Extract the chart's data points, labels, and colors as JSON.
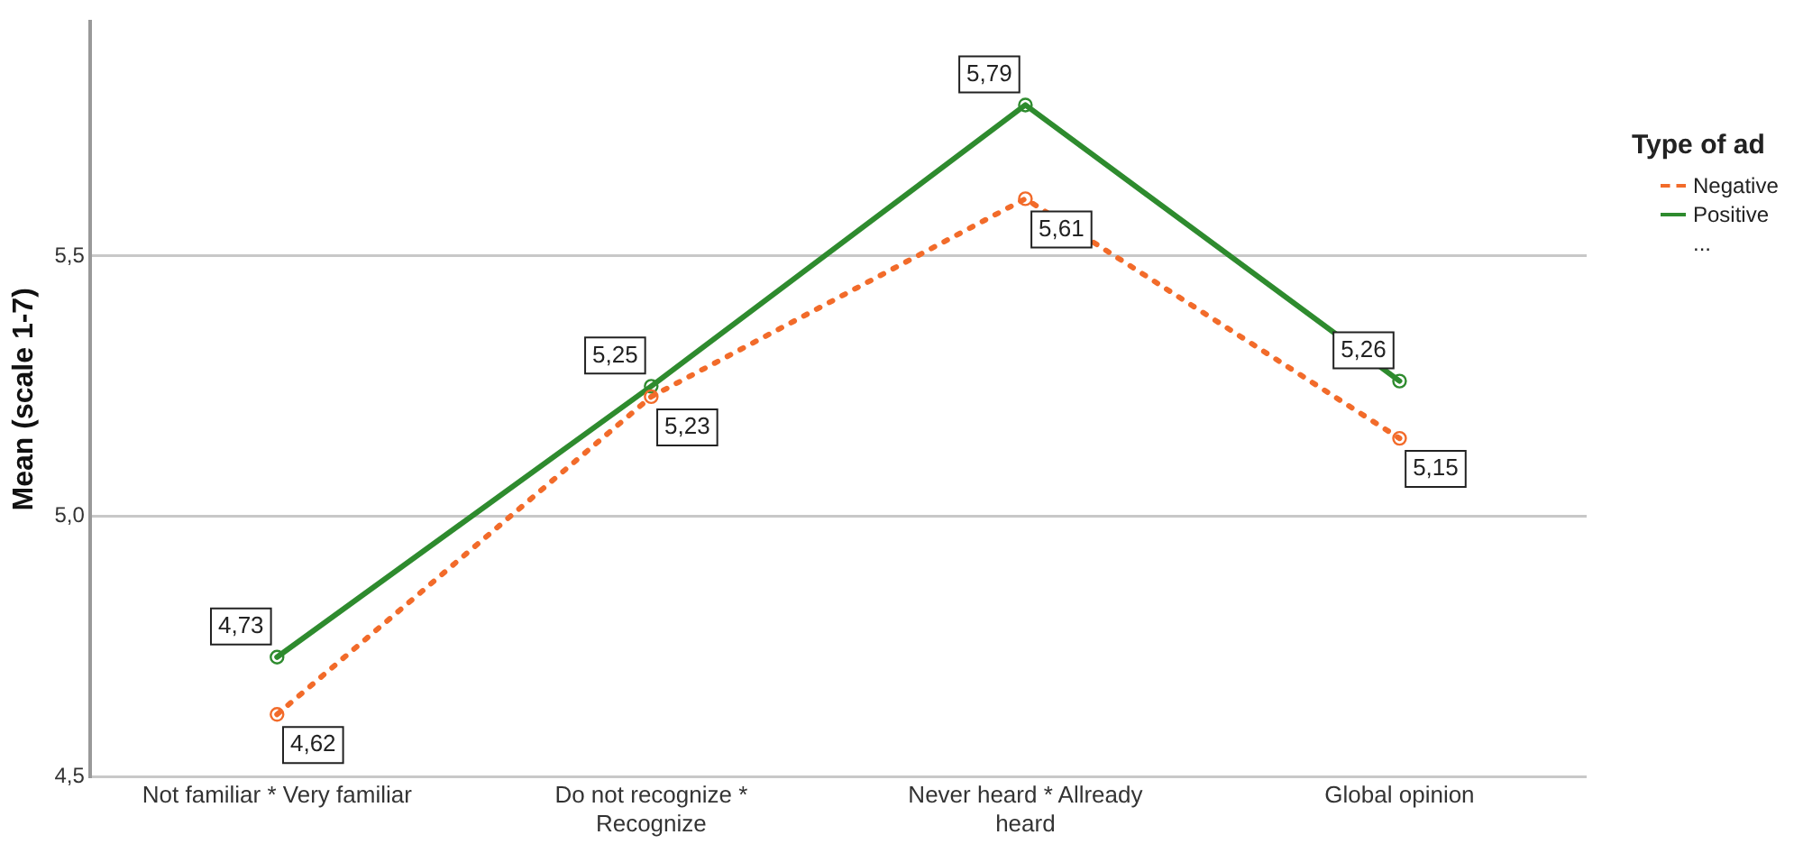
{
  "chart_data": {
    "type": "line",
    "ylabel": "Mean (scale 1-7)",
    "legend_title": "Type of ad",
    "categories": [
      "Not familiar * Very familiar",
      "Do not recognize * Recognize",
      "Never heard * Allready heard",
      "Global opinion"
    ],
    "series": [
      {
        "name": "Negative",
        "color": "#f26b2a",
        "line_style": "dotted",
        "values": [
          4.62,
          5.23,
          5.61,
          5.15
        ]
      },
      {
        "name": "Positive",
        "color": "#2e8b2e",
        "line_style": "solid",
        "values": [
          4.73,
          5.25,
          5.79,
          5.26
        ]
      }
    ],
    "ylim": [
      4.5,
      5.95
    ],
    "yticks": [
      {
        "value": 4.5,
        "label": "4,5"
      },
      {
        "value": 5.0,
        "label": "5,0"
      },
      {
        "value": 5.5,
        "label": "5,5"
      }
    ],
    "grid": "y",
    "legend": "right",
    "marker": "circle",
    "value_labels": [
      [
        "4,62",
        "5,23",
        "5,61",
        "5,15"
      ],
      [
        "4,73",
        "5,25",
        "5,79",
        "5,26"
      ]
    ],
    "annotations": [
      "..."
    ]
  }
}
